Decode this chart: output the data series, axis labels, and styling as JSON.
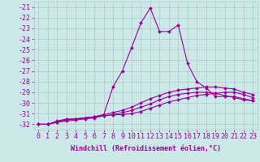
{
  "xlabel": "Windchill (Refroidissement éolien,°C)",
  "x": [
    0,
    1,
    2,
    3,
    4,
    5,
    6,
    7,
    8,
    9,
    10,
    11,
    12,
    13,
    14,
    15,
    16,
    17,
    18,
    19,
    20,
    21,
    22,
    23
  ],
  "lines": [
    [
      -32.0,
      -32.0,
      -31.7,
      -31.5,
      -31.5,
      -31.4,
      -31.3,
      -31.2,
      -31.1,
      -31.1,
      -31.0,
      -30.8,
      -30.5,
      -30.2,
      -29.9,
      -29.7,
      -29.5,
      -29.3,
      -29.2,
      -29.1,
      -29.0,
      -29.0,
      -29.2,
      -29.5
    ],
    [
      -32.0,
      -32.0,
      -31.8,
      -31.7,
      -31.6,
      -31.5,
      -31.4,
      -31.2,
      -31.1,
      -30.9,
      -30.7,
      -30.4,
      -30.1,
      -29.7,
      -29.4,
      -29.2,
      -29.1,
      -29.0,
      -29.0,
      -29.1,
      -29.3,
      -29.5,
      -29.7,
      -29.8
    ],
    [
      -32.0,
      -32.0,
      -31.8,
      -31.6,
      -31.5,
      -31.4,
      -31.3,
      -31.1,
      -28.5,
      -27.0,
      -24.8,
      -22.5,
      -21.1,
      -23.3,
      -23.3,
      -22.7,
      -26.3,
      -28.0,
      -28.6,
      -29.4,
      -29.4,
      -29.4,
      -29.6,
      -29.8
    ],
    [
      -32.0,
      -32.0,
      -31.8,
      -31.6,
      -31.5,
      -31.4,
      -31.3,
      -31.1,
      -30.9,
      -30.7,
      -30.4,
      -30.0,
      -29.6,
      -29.3,
      -29.0,
      -28.8,
      -28.7,
      -28.6,
      -28.5,
      -28.5,
      -28.6,
      -28.7,
      -29.0,
      -29.2
    ]
  ],
  "line_color": "#990099",
  "bg_color": "#cce8e8",
  "grid_color": "#b0c8c8",
  "ylim": [
    -32.5,
    -20.5
  ],
  "yticks": [
    -32,
    -31,
    -30,
    -29,
    -28,
    -27,
    -26,
    -25,
    -24,
    -23,
    -22,
    -21
  ],
  "xlim": [
    -0.5,
    23.5
  ],
  "marker": "D",
  "markersize": 2,
  "linewidth": 0.8,
  "xlabel_fontsize": 6,
  "tick_fontsize": 6
}
